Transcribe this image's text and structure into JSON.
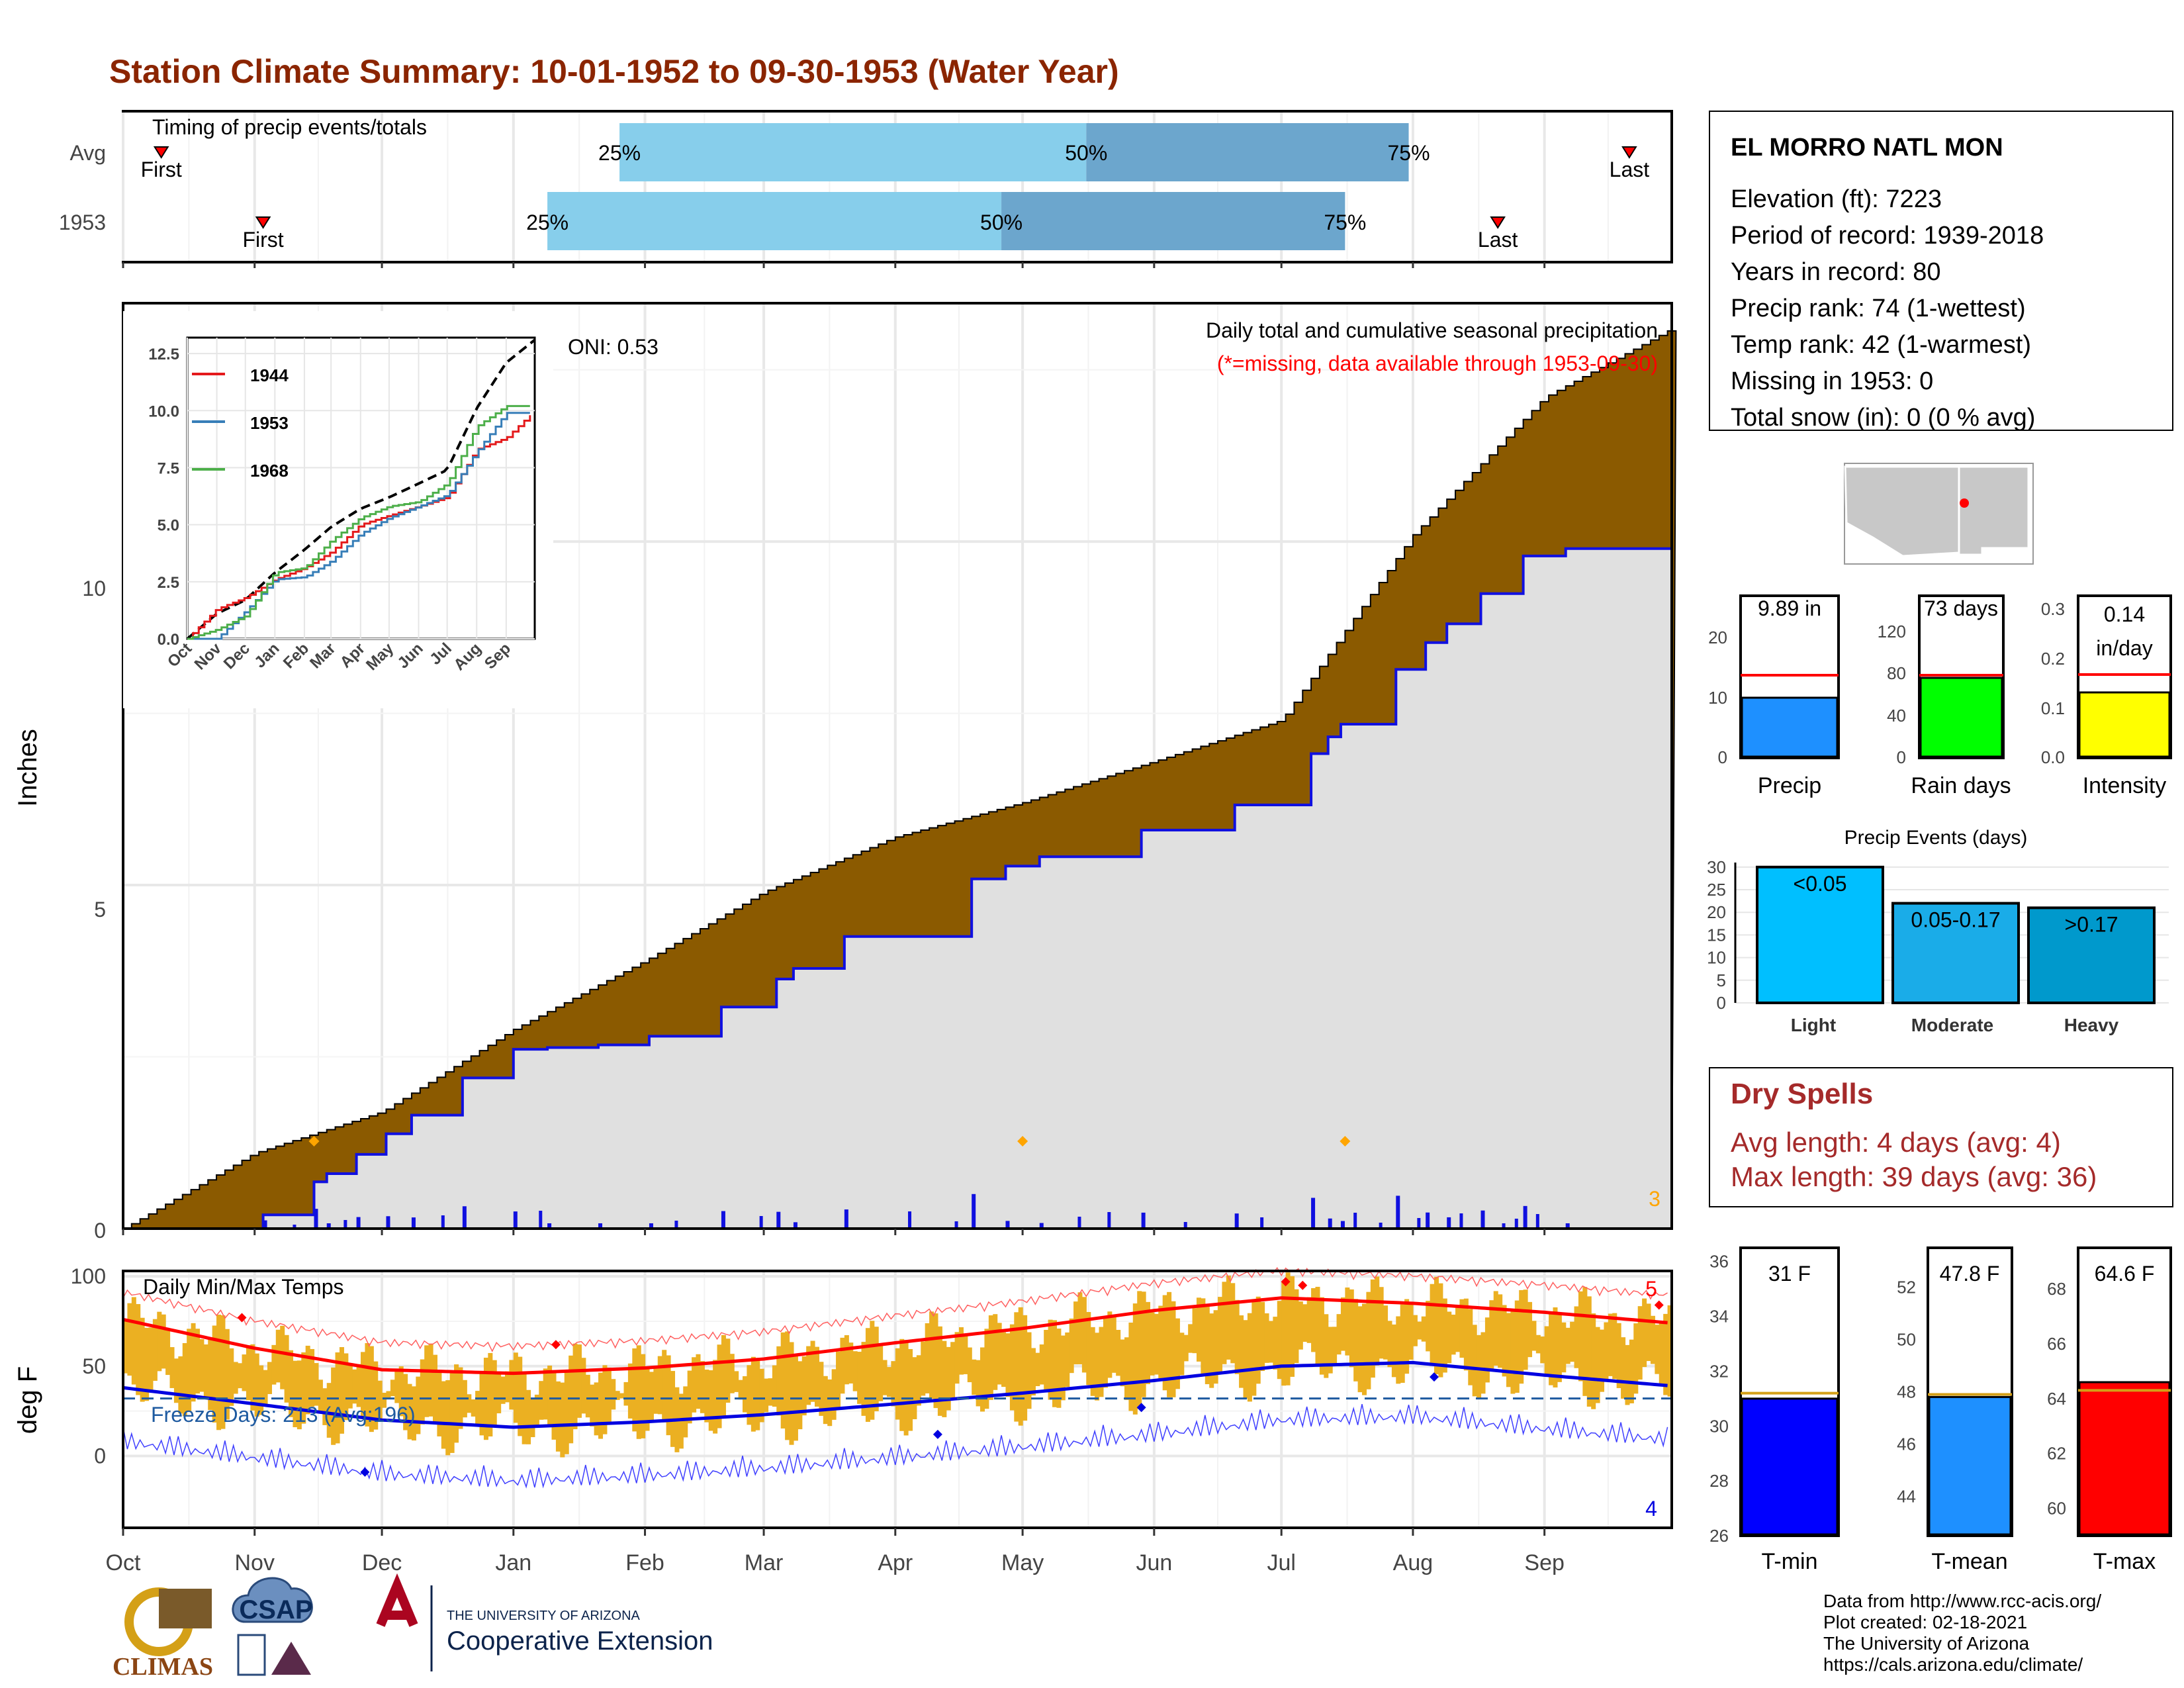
{
  "title": "Station Climate Summary: 10-01-1952 to 09-30-1953 (Water Year)",
  "colors": {
    "title": "#8B2500",
    "cum_avg_fill": "#8B5A00",
    "cum_year_fill": "#E0E0E0",
    "cum_year_line": "#1010E0",
    "daily_bar": "#1010E0",
    "timing_light": "#87CEEB",
    "timing_dark": "#6CA6CD",
    "temp_band": "#EBB022",
    "tmax_line": "#FF0000",
    "tmin_line": "#0000E0",
    "precip_bar": "#1E90FF",
    "raindays_bar": "#00FF00",
    "intensity_bar": "#FFFF00",
    "light_bar": "#00BFFF",
    "moderate_bar": "#1AACE8",
    "heavy_bar": "#0099CC",
    "tmin_bar": "#0000FF",
    "tmean_bar": "#1E90FF",
    "tmax_bar": "#FF0000",
    "dryspell": "#A52A2A"
  },
  "timing": {
    "panel_title": "Timing of precip events/totals",
    "rows": [
      {
        "label": "Avg",
        "first": "First",
        "last": "Last",
        "p25": "25%",
        "p50": "50%",
        "p75": "75%",
        "first_day": 9,
        "p25_day": 117,
        "p50_day": 227,
        "p75_day": 303,
        "last_day": 355
      },
      {
        "label": "1953",
        "first": "First",
        "last": "Last",
        "p25": "25%",
        "p50": "50%",
        "p75": "75%",
        "first_day": 33,
        "p25_day": 100,
        "p50_day": 207,
        "p75_day": 288,
        "last_day": 324
      }
    ]
  },
  "station": {
    "name": "EL MORRO NATL MON",
    "lines": [
      "Elevation (ft): 7223",
      "Period of record: 1939-2018",
      "Years in record: 80",
      "Precip rank: 74 (1-wettest)",
      "Temp rank: 42 (1-warmest)",
      "Missing in 1953: 0",
      "Total snow (in): 0 (0 % avg)"
    ]
  },
  "precip_main": {
    "ylabel": "Inches",
    "oni": "ONI: 0.53",
    "subtitle": "Daily total and cumulative seasonal precipitation",
    "missing_note": "(*=missing, data available through 1953-09-30)",
    "corner_count": "3",
    "yticks": [
      "0",
      "5",
      "10"
    ]
  },
  "months": [
    "Oct",
    "Nov",
    "Dec",
    "Jan",
    "Feb",
    "Mar",
    "Apr",
    "May",
    "Jun",
    "Jul",
    "Aug",
    "Sep"
  ],
  "inset": {
    "months": [
      "Oct",
      "Nov",
      "Dec",
      "Jan",
      "Feb",
      "Mar",
      "Apr",
      "May",
      "Jun",
      "Jul",
      "Aug",
      "Sep"
    ],
    "yticks": [
      "0.0",
      "2.5",
      "5.0",
      "7.5",
      "10.0",
      "12.5"
    ],
    "legend": [
      "1944",
      "1953",
      "1968"
    ]
  },
  "temps": {
    "ylabel": "deg F",
    "panel_title": "Daily Min/Max Temps",
    "freeze": "Freeze Days: 213 (Avg:196)",
    "count_high": "5",
    "count_low": "4",
    "yticks": [
      "0",
      "50",
      "100"
    ]
  },
  "summary_bars": [
    {
      "label": "Precip",
      "value_text": "9.89 in",
      "ticks": [
        "0",
        "10",
        "20"
      ]
    },
    {
      "label": "Rain days",
      "value_text": "73 days",
      "ticks": [
        "0",
        "40",
        "80",
        "120"
      ]
    },
    {
      "label": "Intensity",
      "value_text_1": "0.14",
      "value_text_2": "in/day",
      "ticks": [
        "0.0",
        "0.1",
        "0.2",
        "0.3"
      ]
    }
  ],
  "events": {
    "title": "Precip Events (days)",
    "yticks": [
      "0",
      "5",
      "10",
      "15",
      "20",
      "25",
      "30"
    ],
    "bars": [
      {
        "label": "Light",
        "tag": "<0.05",
        "value": 30
      },
      {
        "label": "Moderate",
        "tag": "0.05-0.17",
        "value": 22
      },
      {
        "label": "Heavy",
        "tag": ">0.17",
        "value": 21
      }
    ]
  },
  "dry_spells": {
    "title": "Dry Spells",
    "avg": "Avg length: 4 days (avg: 4)",
    "max": "Max length: 39 days (avg: 36)"
  },
  "temp_bars": [
    {
      "label": "T-min",
      "value_text": "31 F",
      "value": 31.0,
      "avg": 31.2,
      "ymin": 26,
      "ymax": 36.5,
      "ticks": [
        "26",
        "28",
        "30",
        "32",
        "34",
        "36"
      ]
    },
    {
      "label": "T-mean",
      "value_text": "47.8 F",
      "value": 47.8,
      "avg": 47.9,
      "ymin": 42.5,
      "ymax": 53.5,
      "ticks": [
        "44",
        "46",
        "48",
        "50",
        "52"
      ]
    },
    {
      "label": "T-max",
      "value_text": "64.6 F",
      "value": 64.6,
      "avg": 64.3,
      "ymin": 59,
      "ymax": 69.5,
      "ticks": [
        "60",
        "62",
        "64",
        "66",
        "68"
      ]
    }
  ],
  "footer": {
    "lines": [
      "Data from http://www.rcc-acis.org/",
      "Plot created: 02-18-2021",
      "The University of Arizona",
      "https://cals.arizona.edu/climate/"
    ],
    "logo1": "CLIMAS",
    "logo2": "CSAP",
    "logo3_small": "THE UNIVERSITY OF ARIZONA",
    "logo3_big": "Cooperative Extension"
  },
  "chart_data": [
    {
      "type": "bar",
      "title": "Timing of precip events/totals",
      "categories": [
        "Avg",
        "1953"
      ],
      "series": [
        {
          "name": "First",
          "values": [
            9,
            33
          ]
        },
        {
          "name": "25%",
          "values": [
            117,
            100
          ]
        },
        {
          "name": "50%",
          "values": [
            227,
            207
          ]
        },
        {
          "name": "75%",
          "values": [
            303,
            288
          ]
        },
        {
          "name": "Last",
          "values": [
            355,
            324
          ]
        }
      ]
    },
    {
      "type": "area",
      "title": "Daily total and cumulative seasonal precipitation",
      "ylabel": "Inches",
      "x": [
        "Oct",
        "Nov",
        "Dec",
        "Jan",
        "Feb",
        "Mar",
        "Apr",
        "May",
        "Jun",
        "Jul",
        "Aug",
        "Sep",
        "Sep-30"
      ],
      "series": [
        {
          "values": [
            0,
            1.1,
            1.7,
            2.9,
            3.9,
            4.9,
            5.7,
            6.2,
            6.8,
            7.4,
            10.1,
            12.1,
            13.1
          ]
        },
        {
          "values": [
            0,
            0,
            1.2,
            2.6,
            2.7,
            3.4,
            4.6,
            5.3,
            5.8,
            6.3,
            8.2,
            9.9,
            9.89
          ]
        }
      ],
      "ylim": [
        0,
        13.2
      ]
    },
    {
      "type": "line",
      "title": "",
      "x": [
        "Oct",
        "Nov",
        "Dec",
        "Jan",
        "Feb",
        "Mar",
        "Apr",
        "May",
        "Jun",
        "Jul",
        "Aug",
        "Sep",
        "Sep-30"
      ],
      "series": [
        {
          "name": "1944",
          "values": [
            0,
            1.3,
            1.8,
            2.6,
            3.1,
            3.8,
            5.0,
            5.4,
            5.8,
            6.2,
            8.3,
            8.8,
            10.0
          ]
        },
        {
          "name": "1953",
          "values": [
            0,
            0,
            1.2,
            2.6,
            2.7,
            3.4,
            4.6,
            5.3,
            5.8,
            6.3,
            8.2,
            9.9,
            9.89
          ]
        },
        {
          "name": "1968",
          "values": [
            0,
            0.4,
            1.0,
            2.9,
            3.1,
            4.3,
            5.3,
            5.8,
            6.0,
            6.8,
            9.3,
            10.2,
            10.2
          ]
        }
      ],
      "ylim": [
        0,
        13.2
      ]
    },
    {
      "type": "line",
      "title": "Daily Min/Max Temps",
      "ylabel": "deg F",
      "x": [
        "Oct",
        "Nov",
        "Dec",
        "Jan",
        "Feb",
        "Mar",
        "Apr",
        "May",
        "Jun",
        "Jul",
        "Aug",
        "Sep",
        "Sep-30"
      ],
      "series": [
        {
          "name": "Avg max",
          "values": [
            76,
            60,
            48,
            46,
            49,
            54,
            63,
            71,
            81,
            88,
            85,
            80,
            74
          ]
        },
        {
          "name": "Avg min",
          "values": [
            38,
            29,
            20,
            16,
            19,
            23,
            29,
            35,
            42,
            50,
            52,
            45,
            39
          ]
        }
      ],
      "ylim": [
        -40,
        103
      ]
    },
    {
      "type": "bar",
      "title": "",
      "categories": [
        "Precip",
        "Rain days",
        "Intensity"
      ],
      "series": [
        {
          "name": "1953",
          "values": [
            9.89,
            73,
            0.14
          ]
        },
        {
          "name": "Avg",
          "values": [
            13.5,
            77,
            0.175
          ]
        }
      ]
    },
    {
      "type": "bar",
      "title": "Precip Events (days)",
      "categories": [
        "Light",
        "Moderate",
        "Heavy"
      ],
      "values": [
        30,
        22,
        21
      ],
      "ylim": [
        0,
        31
      ]
    },
    {
      "type": "bar",
      "title": "",
      "categories": [
        "T-min",
        "T-mean",
        "T-max"
      ],
      "series": [
        {
          "name": "1953",
          "values": [
            31.0,
            47.8,
            64.6
          ]
        },
        {
          "name": "Avg",
          "values": [
            31.2,
            47.9,
            64.3
          ]
        }
      ]
    }
  ]
}
